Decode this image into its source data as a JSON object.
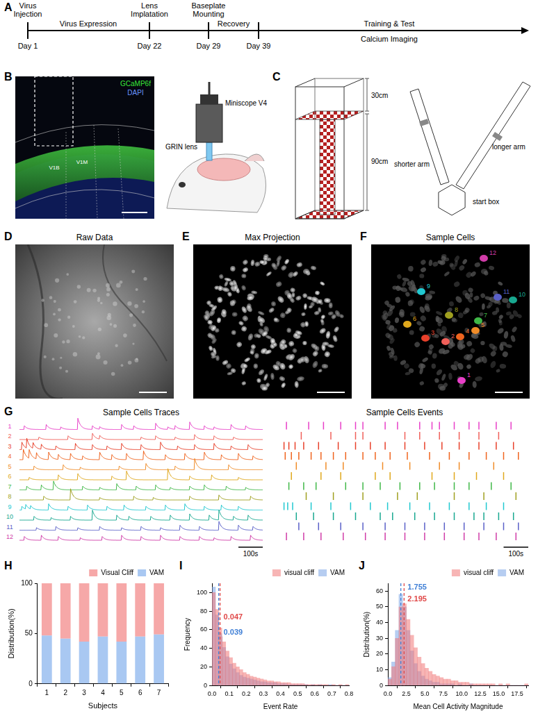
{
  "figure": {
    "A": {
      "letter": "A",
      "milestones": [
        {
          "label": [
            "Virus",
            "Injection"
          ],
          "day": "Day 1"
        },
        {
          "label": [
            "Lens",
            "Implatation"
          ],
          "day": "Day 22"
        },
        {
          "label": [
            "Baseplate",
            "Mounting"
          ],
          "day": "Day 29"
        },
        {
          "label": [],
          "day": "Day 39"
        }
      ],
      "phases": [
        "Virus Expression",
        "Recovery"
      ],
      "final_phase": [
        "Training & Test",
        "Calcium Imaging"
      ]
    },
    "B": {
      "letter": "B",
      "stains": [
        "GCaMP6f",
        "DAPI"
      ],
      "regions": [
        "V1B",
        "V1M"
      ],
      "labels": [
        "Miniscope V4",
        "GRIN lens"
      ]
    },
    "C": {
      "letter": "C",
      "heights": [
        "30cm",
        "90cm"
      ],
      "maze": [
        "shorter arm",
        "longer arm",
        "start box"
      ]
    },
    "D": {
      "letter": "D",
      "title": "Raw Data"
    },
    "E": {
      "letter": "E",
      "title": "Max Projection"
    },
    "F": {
      "letter": "F",
      "title": "Sample Cells"
    },
    "G": {
      "letter": "G",
      "titles": [
        "Sample Cells Traces",
        "Sample Cells Events"
      ],
      "xlim": [
        0,
        1000
      ],
      "scale_bar": {
        "value": 100,
        "label": "100s"
      }
    }
  },
  "cells": [
    {
      "id": 1,
      "color": "#e83fc8",
      "event_times": [
        20,
        110,
        170,
        240,
        300,
        330,
        420,
        470,
        560,
        610,
        640,
        700,
        760,
        800,
        870,
        930
      ],
      "event_amplitudes": [
        0.3,
        0.4,
        0.2,
        0.9,
        0.3,
        0.2,
        0.4,
        0.3,
        0.5,
        0.2,
        0.3,
        0.6,
        0.3,
        0.2,
        0.4,
        0.3
      ]
    },
    {
      "id": 2,
      "color": "#f0605a",
      "event_times": [
        80,
        200,
        300,
        330,
        500,
        560,
        640,
        720,
        800,
        880
      ],
      "event_amplitudes": [
        0.2,
        0.3,
        0.5,
        0.3,
        0.2,
        0.3,
        0.2,
        0.4,
        0.3,
        0.2
      ]
    },
    {
      "id": 3,
      "color": "#e8402a",
      "event_times": [
        10,
        30,
        55,
        90,
        150,
        230,
        300,
        360,
        420,
        500,
        580,
        650,
        720,
        800,
        870,
        940
      ],
      "event_amplitudes": [
        0.6,
        0.8,
        0.5,
        0.4,
        0.3,
        0.5,
        0.4,
        0.3,
        0.5,
        0.4,
        0.6,
        0.3,
        0.4,
        0.5,
        0.3,
        0.4
      ]
    },
    {
      "id": 4,
      "color": "#f0641e",
      "event_times": [
        15,
        40,
        70,
        120,
        160,
        210,
        260,
        330,
        380,
        440,
        510,
        600,
        680,
        760,
        830,
        900,
        960
      ],
      "event_amplitudes": [
        0.9,
        0.7,
        0.5,
        0.6,
        0.4,
        0.5,
        0.3,
        0.6,
        0.4,
        0.5,
        0.7,
        0.4,
        0.5,
        0.6,
        0.4,
        0.5,
        0.3
      ]
    },
    {
      "id": 5,
      "color": "#f08c28",
      "event_times": [
        60,
        180,
        250,
        410,
        520,
        640,
        720,
        860
      ],
      "event_amplitudes": [
        0.3,
        0.4,
        0.2,
        0.3,
        0.5,
        0.3,
        0.9,
        0.4
      ]
    },
    {
      "id": 6,
      "color": "#e0a81c",
      "event_times": [
        40,
        160,
        240,
        380,
        440,
        610,
        700,
        790,
        900
      ],
      "event_amplitudes": [
        0.2,
        0.4,
        0.5,
        0.3,
        0.7,
        0.9,
        0.3,
        0.4,
        0.2
      ]
    },
    {
      "id": 7,
      "color": "#40b848",
      "event_times": [
        30,
        90,
        140,
        260,
        330,
        400,
        480,
        560,
        620,
        700,
        760,
        850,
        930
      ],
      "event_amplitudes": [
        0.3,
        0.4,
        0.7,
        0.3,
        0.2,
        0.5,
        0.3,
        0.4,
        0.2,
        0.3,
        0.4,
        0.3,
        0.2
      ]
    },
    {
      "id": 8,
      "color": "#a0a020",
      "event_times": [
        100,
        210,
        330,
        470,
        550,
        700,
        820,
        950
      ],
      "event_amplitudes": [
        0.3,
        0.9,
        0.2,
        0.3,
        0.2,
        0.3,
        0.4,
        0.3
      ]
    },
    {
      "id": 9,
      "color": "#20c8d0",
      "event_times": [
        10,
        25,
        45,
        120,
        200,
        280,
        360,
        430,
        520,
        600,
        680,
        760,
        830,
        900
      ],
      "event_amplitudes": [
        0.3,
        0.4,
        0.3,
        0.5,
        0.3,
        0.4,
        0.3,
        0.4,
        0.3,
        0.4,
        0.5,
        0.3,
        0.4,
        0.3
      ]
    },
    {
      "id": 10,
      "color": "#18a890",
      "event_times": [
        60,
        130,
        210,
        300,
        400,
        450,
        540,
        620,
        700,
        780,
        820,
        880,
        940
      ],
      "event_amplitudes": [
        0.3,
        0.2,
        0.3,
        0.8,
        0.4,
        0.3,
        0.3,
        0.4,
        0.5,
        0.4,
        0.8,
        0.3,
        0.4
      ]
    },
    {
      "id": 11,
      "color": "#5a60c8",
      "event_times": [
        70,
        150,
        240,
        330,
        420,
        500,
        580,
        660,
        740,
        820,
        900,
        960
      ],
      "event_amplitudes": [
        0.2,
        0.3,
        0.2,
        0.3,
        0.2,
        0.3,
        0.2,
        0.4,
        0.3,
        0.7,
        0.4,
        0.3
      ]
    },
    {
      "id": 12,
      "color": "#d03ca8",
      "event_times": [
        20,
        90,
        160,
        250,
        340,
        420,
        500,
        580,
        660,
        740,
        800,
        870,
        950
      ],
      "event_amplitudes": [
        0.3,
        0.4,
        0.3,
        0.2,
        0.3,
        0.4,
        0.3,
        0.4,
        0.3,
        0.3,
        0.2,
        0.3,
        0.4
      ]
    }
  ],
  "chart_data": [
    {
      "letter": "H",
      "type": "bar",
      "stacked": true,
      "grid": false,
      "legend": "top",
      "categories": [
        "1",
        "2",
        "3",
        "4",
        "5",
        "6",
        "7"
      ],
      "x_label": "Subjects",
      "y_label": "Distribution(%)",
      "ylim": [
        0,
        100
      ],
      "yticks": [
        0,
        50,
        100
      ],
      "series": [
        {
          "name": "VAM",
          "color": "#a9c8f2",
          "values": [
            48,
            45,
            42,
            47,
            42,
            47,
            49
          ]
        },
        {
          "name": "Visual Cliff",
          "color": "#f6a8a8",
          "values": [
            52,
            55,
            58,
            53,
            58,
            53,
            51
          ]
        }
      ]
    },
    {
      "letter": "I",
      "type": "histogram",
      "grid": false,
      "legend": "top",
      "x_label": "Event Rate",
      "y_label": "Frequency",
      "bins": [
        0,
        0.02,
        0.04,
        0.06,
        0.08,
        0.1,
        0.12,
        0.14,
        0.16,
        0.18,
        0.2,
        0.22,
        0.24,
        0.26,
        0.28,
        0.3,
        0.32,
        0.34,
        0.36,
        0.38,
        0.4,
        0.42,
        0.44,
        0.46,
        0.48,
        0.5,
        0.52,
        0.54,
        0.56,
        0.58,
        0.6,
        0.62,
        0.64,
        0.66,
        0.68,
        0.7,
        0.72,
        0.74,
        0.76,
        0.78,
        0.8
      ],
      "series": [
        {
          "name": "visual cliff",
          "color": "#f07878",
          "values": [
            100,
            82,
            62,
            47,
            37,
            30,
            24,
            20,
            17,
            14,
            12,
            10,
            9,
            8,
            7,
            6,
            5,
            5,
            4,
            4,
            3,
            3,
            3,
            2,
            2,
            2,
            2,
            1,
            1,
            1,
            1,
            1,
            1,
            1,
            0,
            1,
            0,
            1,
            0,
            1
          ]
        },
        {
          "name": "VAM",
          "color": "#7aa4e6",
          "values": [
            106,
            76,
            56,
            41,
            31,
            23,
            18,
            14,
            11,
            9,
            8,
            7,
            6,
            5,
            4,
            4,
            3,
            3,
            3,
            2,
            2,
            2,
            1,
            1,
            1,
            1,
            1,
            1,
            0,
            1,
            0,
            1,
            0,
            0,
            1,
            0,
            0,
            0,
            0,
            0
          ]
        }
      ],
      "xlim": [
        0,
        0.8
      ],
      "xticks": [
        {
          "value": 0,
          "label": "0.0"
        },
        0.1,
        0.2,
        0.3,
        0.4,
        0.5,
        0.6,
        0.7,
        0.8
      ],
      "ylim": [
        0,
        110
      ],
      "yticks": [
        0,
        20,
        40,
        60,
        80,
        100
      ],
      "means": [
        {
          "value": 0.047,
          "color": "#e04848"
        },
        {
          "value": 0.039,
          "color": "#3f7fd6"
        }
      ]
    },
    {
      "letter": "J",
      "type": "histogram",
      "grid": false,
      "legend": "top",
      "x_label": "Mean Cell Activity Magnitude",
      "y_label": "Distribution(%)",
      "bins": [
        0,
        0.5,
        1,
        1.5,
        2,
        2.5,
        3,
        3.5,
        4,
        4.5,
        5,
        5.5,
        6,
        6.5,
        7,
        7.5,
        8,
        8.5,
        9,
        9.5,
        10,
        10.5,
        11,
        11.5,
        12,
        12.5,
        13,
        13.5,
        14,
        14.5,
        15,
        15.5,
        16,
        16.5,
        17,
        17.5,
        18,
        18.5,
        19
      ],
      "series": [
        {
          "name": "visual cliff",
          "color": "#f07878",
          "values": [
            4,
            12,
            30,
            50,
            52,
            42,
            32,
            24,
            18,
            14,
            11,
            9,
            7,
            6,
            5,
            4,
            4,
            3,
            3,
            2,
            2,
            2,
            1,
            1,
            1,
            1,
            1,
            1,
            1,
            0,
            1,
            0,
            1,
            0,
            0,
            0,
            0,
            1
          ]
        },
        {
          "name": "VAM",
          "color": "#7aa4e6",
          "values": [
            5,
            15,
            35,
            58,
            50,
            35,
            22,
            14,
            9,
            6,
            4,
            3,
            2,
            2,
            1,
            1,
            1,
            1,
            0,
            1,
            0,
            0,
            1,
            0,
            0,
            0,
            0,
            0,
            0,
            0,
            0,
            0,
            0,
            0,
            0,
            0,
            0,
            0
          ]
        }
      ],
      "xlim": [
        0,
        19
      ],
      "xticks": [
        {
          "value": 0,
          "label": "0.0"
        },
        2.5,
        {
          "value": 5,
          "label": "5.0"
        },
        7.5,
        {
          "value": 10,
          "label": "10.0"
        },
        12.5,
        {
          "value": 15,
          "label": "15.0"
        },
        17.5
      ],
      "ylim": [
        0,
        65
      ],
      "yticks": [
        0,
        10,
        20,
        30,
        40,
        50,
        60
      ],
      "means": [
        {
          "value": 1.755,
          "color": "#3f7fd6"
        },
        {
          "value": 2.195,
          "color": "#e04848"
        }
      ]
    }
  ]
}
